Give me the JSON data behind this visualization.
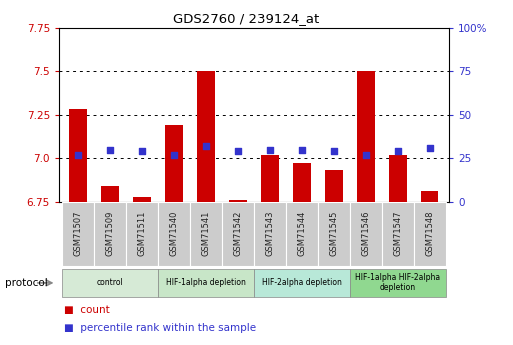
{
  "title": "GDS2760 / 239124_at",
  "samples": [
    "GSM71507",
    "GSM71509",
    "GSM71511",
    "GSM71540",
    "GSM71541",
    "GSM71542",
    "GSM71543",
    "GSM71544",
    "GSM71545",
    "GSM71546",
    "GSM71547",
    "GSM71548"
  ],
  "bar_values": [
    7.28,
    6.84,
    6.78,
    7.19,
    7.5,
    6.76,
    7.02,
    6.97,
    6.93,
    7.5,
    7.02,
    6.81
  ],
  "dot_values": [
    27,
    30,
    29,
    27,
    32,
    29,
    30,
    30,
    29,
    27,
    29,
    31
  ],
  "ylim_left": [
    6.75,
    7.75
  ],
  "ylim_right": [
    0,
    100
  ],
  "yticks_left": [
    6.75,
    7.0,
    7.25,
    7.5,
    7.75
  ],
  "yticks_right": [
    0,
    25,
    50,
    75,
    100
  ],
  "ytick_labels_right": [
    "0",
    "25",
    "50",
    "75",
    "100%"
  ],
  "bar_color": "#cc0000",
  "dot_color": "#3333cc",
  "bar_width": 0.55,
  "groups": [
    {
      "label": "control",
      "start": 0,
      "end": 2,
      "color": "#d6ead6"
    },
    {
      "label": "HIF-1alpha depletion",
      "start": 3,
      "end": 5,
      "color": "#c8e6c8"
    },
    {
      "label": "HIF-2alpha depletion",
      "start": 6,
      "end": 8,
      "color": "#b8e8d8"
    },
    {
      "label": "HIF-1alpha HIF-2alpha\ndepletion",
      "start": 9,
      "end": 11,
      "color": "#90d890"
    }
  ],
  "protocol_label": "protocol",
  "legend_count_label": "count",
  "legend_pct_label": "percentile rank within the sample",
  "left_axis_color": "#cc0000",
  "right_axis_color": "#3333cc",
  "xtick_box_color": "#cccccc",
  "plot_bg": "#ffffff"
}
